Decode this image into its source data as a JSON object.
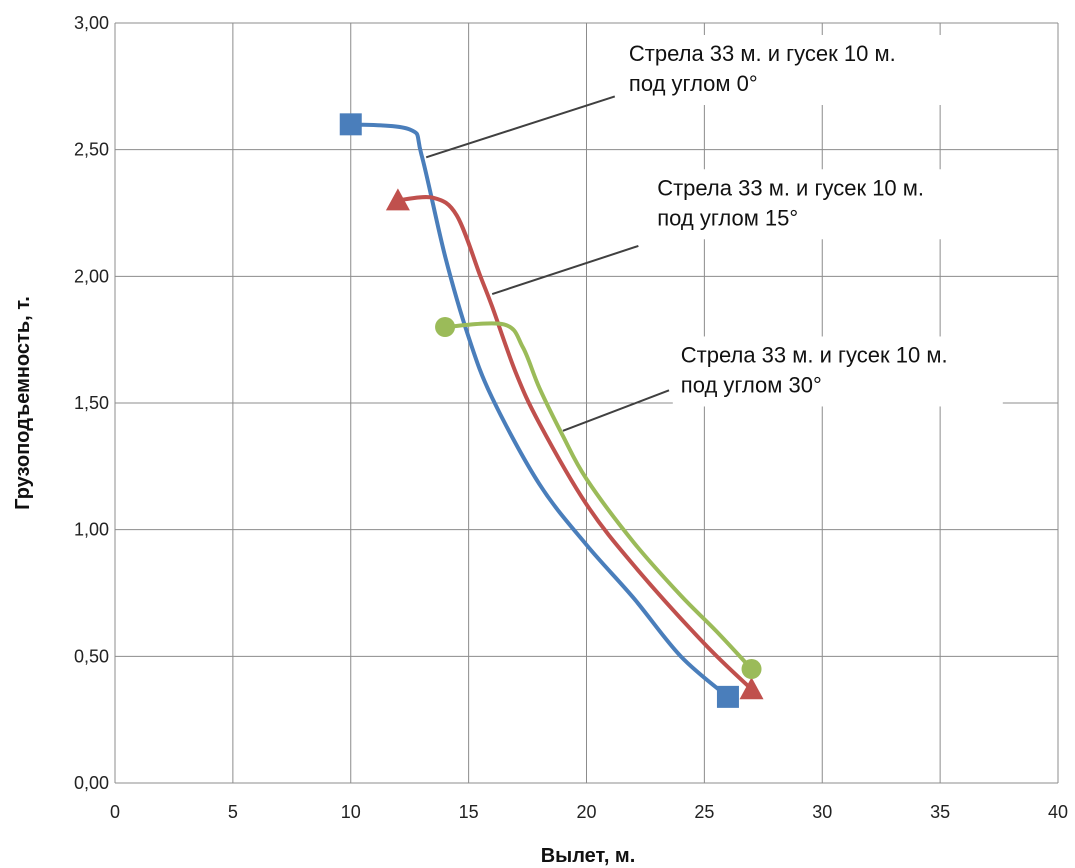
{
  "chart_data": {
    "type": "line",
    "title": "",
    "xlabel": "Вылет, м.",
    "ylabel": "Грузоподъемность, т.",
    "xlim": [
      0,
      40
    ],
    "ylim": [
      0,
      3
    ],
    "x_ticks": [
      0,
      5,
      10,
      15,
      20,
      25,
      30,
      35,
      40
    ],
    "x_tick_labels": [
      "0",
      "5",
      "10",
      "15",
      "20",
      "25",
      "30",
      "35",
      "40"
    ],
    "y_ticks": [
      0,
      0.5,
      1,
      1.5,
      2,
      2.5,
      3
    ],
    "y_tick_labels": [
      "0,00",
      "0,50",
      "1,00",
      "1,50",
      "2,00",
      "2,50",
      "3,00"
    ],
    "grid": true,
    "legend": "none",
    "series": [
      {
        "color": "#4a7ebb",
        "marker": "square",
        "points": [
          [
            10,
            2.6
          ],
          [
            12.5,
            2.58
          ],
          [
            13,
            2.48
          ],
          [
            14,
            2.08
          ],
          [
            15,
            1.76
          ],
          [
            16,
            1.52
          ],
          [
            18,
            1.18
          ],
          [
            20,
            0.94
          ],
          [
            22,
            0.73
          ],
          [
            24,
            0.5
          ],
          [
            26,
            0.34
          ]
        ]
      },
      {
        "color": "#c0504d",
        "marker": "triangle",
        "points": [
          [
            12,
            2.3
          ],
          [
            13.5,
            2.31
          ],
          [
            14.5,
            2.24
          ],
          [
            15.5,
            2.0
          ],
          [
            16,
            1.88
          ],
          [
            17,
            1.62
          ],
          [
            18,
            1.42
          ],
          [
            20,
            1.1
          ],
          [
            22,
            0.86
          ],
          [
            25,
            0.55
          ],
          [
            27,
            0.37
          ]
        ]
      },
      {
        "color": "#9bbb59",
        "marker": "circle",
        "points": [
          [
            14,
            1.8
          ],
          [
            16.5,
            1.81
          ],
          [
            17.3,
            1.72
          ],
          [
            18,
            1.56
          ],
          [
            19,
            1.37
          ],
          [
            20,
            1.2
          ],
          [
            22,
            0.95
          ],
          [
            24,
            0.74
          ],
          [
            25.5,
            0.6
          ],
          [
            27,
            0.45
          ]
        ]
      }
    ],
    "annotations": [
      {
        "lines": [
          "Стрела 33 м. и гусек 10 м.",
          "под углом 0°"
        ],
        "text_at": [
          21.8,
          2.85
        ],
        "line_from": [
          21.2,
          2.71
        ],
        "line_to": [
          13.2,
          2.47
        ]
      },
      {
        "lines": [
          "Стрела 33 м. и гусек 10 м.",
          "под углом 15°"
        ],
        "text_at": [
          23.0,
          2.32
        ],
        "line_from": [
          22.2,
          2.12
        ],
        "line_to": [
          16.0,
          1.93
        ]
      },
      {
        "lines": [
          "Стрела 33 м. и гусек 10 м.",
          "под углом 30°"
        ],
        "text_at": [
          24.0,
          1.66
        ],
        "line_from": [
          23.5,
          1.55
        ],
        "line_to": [
          19.0,
          1.39
        ]
      }
    ]
  }
}
